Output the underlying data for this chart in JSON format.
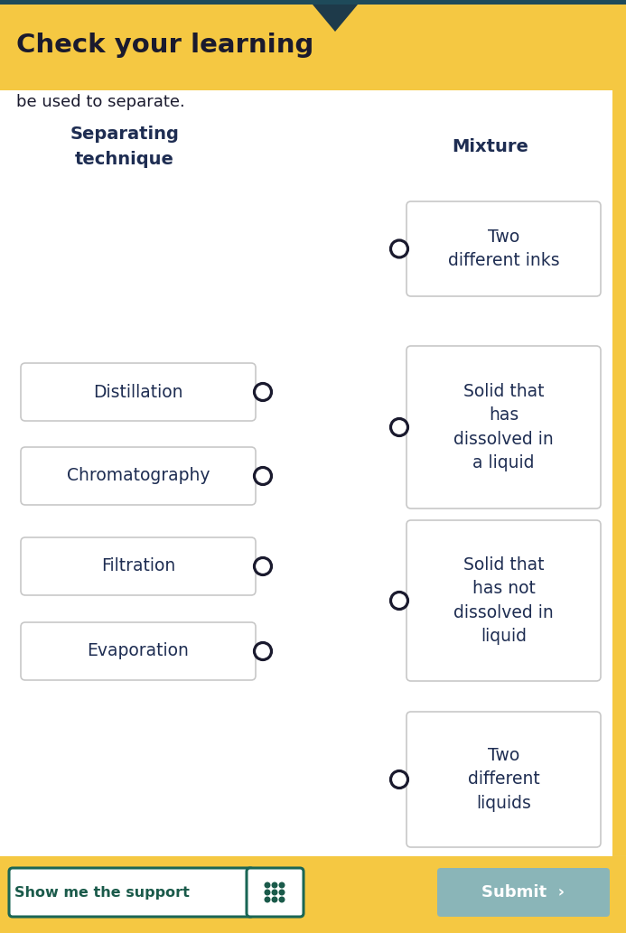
{
  "title": "Check your learning",
  "subtitle": "be used to separate.",
  "header_bg": "#f5c842",
  "header_text_color": "#1a1a2e",
  "bg_color": "#ffffff",
  "left_header": "Separating\ntechnique",
  "right_header": "Mixture",
  "header_color": "#1e2d52",
  "left_items": [
    "Distillation",
    "Chromatography",
    "Filtration",
    "Evaporation"
  ],
  "right_items": [
    "Two\ndifferent inks",
    "Solid that\nhas\ndissolved in\na liquid",
    "Solid that\nhas not\ndissolved in\nliquid",
    "Two\ndifferent\nliquids"
  ],
  "box_bg": "#ffffff",
  "box_border": "#c8c8c8",
  "text_color": "#1e2d52",
  "circle_color": "#1a1a2e",
  "button_support_bg": "#ffffff",
  "button_support_border": "#1a6655",
  "button_support_text": "#1a5a4a",
  "button_submit_bg": "#8ab5b8",
  "button_submit_text": "#ffffff",
  "show_support_label": "Show me the support",
  "submit_label": "Submit  ›",
  "teal_bar_color": "#1e4a5a",
  "triangle_color": "#1e3a4a",
  "footer_bg": "#f5c842",
  "right_border_color": "#f5c842"
}
